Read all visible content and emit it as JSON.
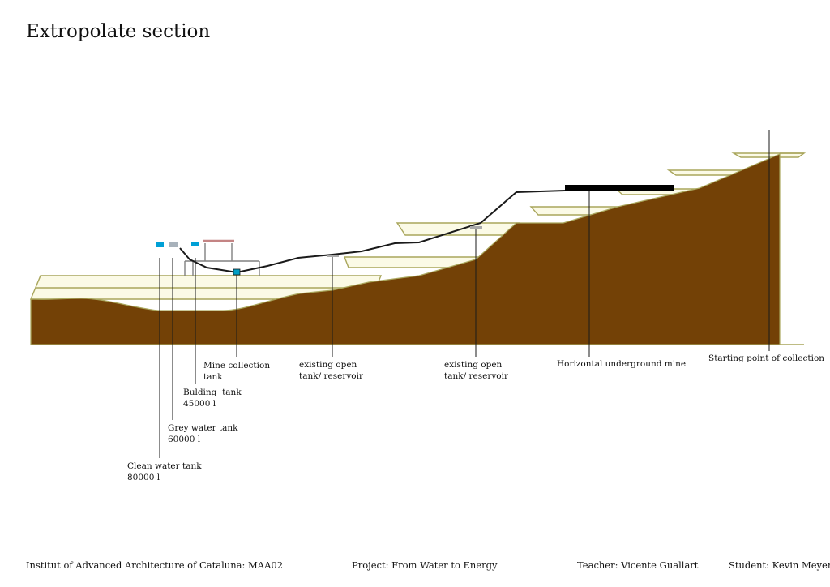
{
  "title": "Extropolate section",
  "colors": {
    "terrain": "#734106",
    "terrace_fill": "#fbfae6",
    "terrace_edge": "#a9a65c",
    "pipe": "#1a1a1a",
    "mine": "#000000",
    "clean_tank": "#00a0d6",
    "grey_tank": "#a8b2bb",
    "building_tank": "#00a0d6",
    "mine_tank": "#009ec4",
    "reservoir": "#aaaaaa",
    "building": "#808080",
    "roof": "#c48484"
  },
  "labels": {
    "mine_collection": [
      "Mine collection",
      "tank"
    ],
    "reservoir_1": [
      "existing open",
      "tank/ reservoir"
    ],
    "reservoir_2": [
      "existing open",
      "tank/ reservoir"
    ],
    "horizontal_mine": [
      "Horizontal underground mine"
    ],
    "starting_point": [
      "Starting point of collection"
    ],
    "building_tank": [
      "Bulding  tank",
      "45000 l"
    ],
    "grey_water": [
      "Grey water tank",
      "60000 l"
    ],
    "clean_water": [
      "Clean water tank",
      "80000 l"
    ]
  },
  "footer": {
    "institute": "Institut of Advanced Architecture of Cataluna: MAA02",
    "project": "Project: From Water to Energy",
    "teacher": "Teacher: Vicente Guallart",
    "student": "Student: Kevin Meyer"
  }
}
